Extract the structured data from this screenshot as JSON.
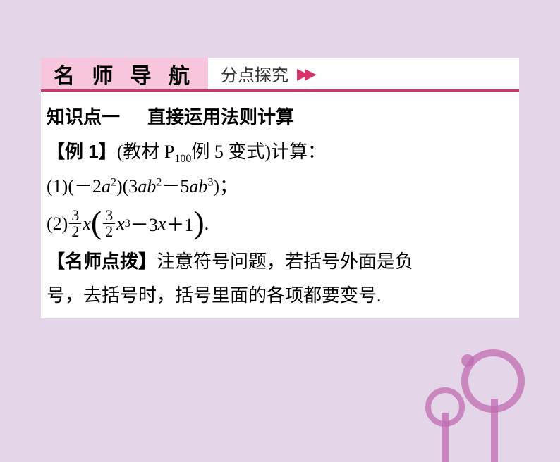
{
  "header": {
    "left": "名 师 导 航",
    "right": "分点探究",
    "arrows": "▶▶"
  },
  "lines": {
    "kp_label": "知识点一",
    "kp_title": "直接运用法则计算",
    "ex_label": "【例 1】",
    "ex_src_open": "(教材 P",
    "ex_src_sub": "100",
    "ex_src_close": "例 5 变式)计算：",
    "item1_open": "(1)(－2",
    "a": "a",
    "sq": "2",
    "item1_mid1": ")(3",
    "b": "b",
    "item1_mid2": "－5",
    "cube": "3",
    "item1_close": ")；",
    "item2_open": "(2)",
    "frac_num": "3",
    "frac_den": "2",
    "x": "x",
    "item2_mid": "－3",
    "item2_plus": "＋1",
    "item2_close": ".",
    "tip_label": "【名师点拨】",
    "tip_text1": "注意符号问题，若括号外面是负",
    "tip_text2": "号，去括号时，括号里面的各项都要变号."
  },
  "colors": {
    "page_bg": "#e4d5e8",
    "box_bg": "#ffffff",
    "header_bg": "#f7c5dc",
    "accent": "#d6336c",
    "deco": "#c26bb0"
  }
}
